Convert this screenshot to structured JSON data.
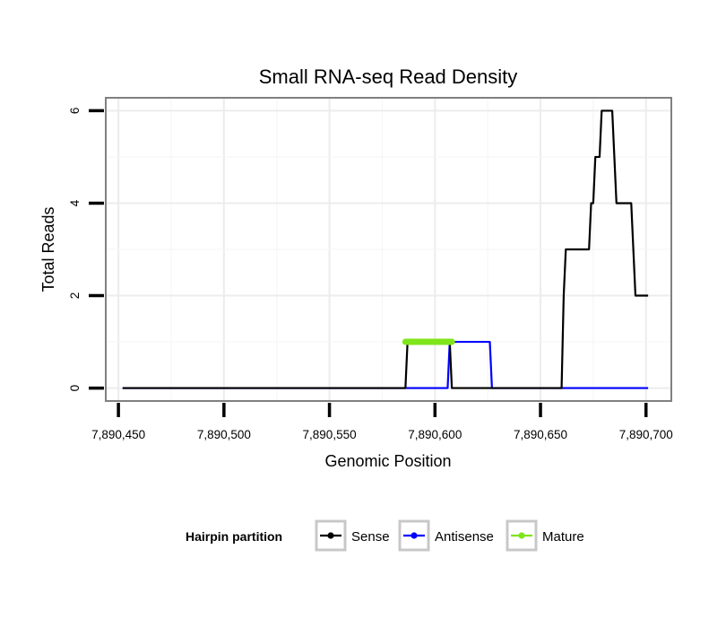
{
  "chart_data": {
    "type": "line",
    "title": "Small RNA-seq Read Density",
    "xlabel": "Genomic Position",
    "ylabel": "Total Reads",
    "xlim": [
      7890444,
      7890712
    ],
    "ylim": [
      -0.28,
      6.28
    ],
    "x_ticks": [
      7890450,
      7890500,
      7890550,
      7890600,
      7890650,
      7890700
    ],
    "x_tick_labels": [
      "7,890,450",
      "7,890,500",
      "7,890,550",
      "7,890,600",
      "7,890,650",
      "7,890,700"
    ],
    "y_ticks": [
      0,
      2,
      4,
      6
    ],
    "y_tick_labels": [
      "0",
      "2",
      "4",
      "6"
    ],
    "grid": true,
    "legend": {
      "position": "bottom",
      "title": "Hairpin partition",
      "entries": [
        "Sense",
        "Antisense",
        "Mature"
      ]
    },
    "series": [
      {
        "name": "Sense",
        "color": "#000000",
        "points": [
          [
            7890452,
            0
          ],
          [
            7890586,
            0
          ],
          [
            7890587,
            1
          ],
          [
            7890607,
            1
          ],
          [
            7890608,
            0
          ],
          [
            7890660,
            0
          ],
          [
            7890661,
            2
          ],
          [
            7890662,
            3
          ],
          [
            7890673,
            3
          ],
          [
            7890674,
            4
          ],
          [
            7890675,
            4
          ],
          [
            7890676,
            5
          ],
          [
            7890678,
            5
          ],
          [
            7890679,
            6
          ],
          [
            7890684,
            6
          ],
          [
            7890685,
            5
          ],
          [
            7890686,
            4
          ],
          [
            7890693,
            4
          ],
          [
            7890695,
            2
          ],
          [
            7890701,
            2
          ]
        ]
      },
      {
        "name": "Antisense",
        "color": "#0000ff",
        "points": [
          [
            7890452,
            0
          ],
          [
            7890606,
            0
          ],
          [
            7890607,
            1
          ],
          [
            7890626,
            1
          ],
          [
            7890627,
            0
          ],
          [
            7890701,
            0
          ]
        ]
      },
      {
        "name": "Mature",
        "color": "#7fe51a",
        "points": [
          [
            7890586,
            1
          ],
          [
            7890608,
            1
          ]
        ]
      }
    ]
  }
}
